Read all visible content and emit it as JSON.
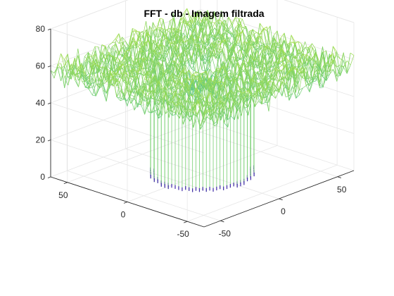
{
  "chart_data": {
    "type": "surface",
    "title": "FFT - db - Imagem filtrada",
    "xlabel": "",
    "ylabel": "",
    "zlabel": "",
    "x_ticks": [
      -50,
      0,
      50
    ],
    "y_ticks": [
      -50,
      0,
      50
    ],
    "z_ticks": [
      0,
      20,
      40,
      60,
      80
    ],
    "xlim": [
      -64,
      64
    ],
    "ylim": [
      -64,
      64
    ],
    "zlim": [
      0,
      80
    ],
    "grid": true,
    "view": "3-D perspective, azimuth -37.5, elevation 30",
    "description": "Log-magnitude spectrum of a low-pass filtered image: surrounding plateau around 55-60 dB with noise, a central cylindrical region (radius ~30) falling to 0 dB at the bottom, and a small central region of low values (~40-50 dB) near the DC component.",
    "surface_regions": [
      {
        "region": "outer_plateau",
        "radius_min": 30,
        "radius_max": 90,
        "z_mean": 57,
        "z_noise": 8
      },
      {
        "region": "center_cylinder_wall",
        "radius": 30,
        "z_min": 0,
        "z_max": 60
      },
      {
        "region": "inner_low_values",
        "radius_max": 12,
        "z_mean": 48
      }
    ],
    "colors": {
      "low": "#3d26a8",
      "mid": "#2fb7a6",
      "high": "#f9fb0e",
      "axis": "#262626",
      "grid": "#e6e6e6"
    }
  }
}
